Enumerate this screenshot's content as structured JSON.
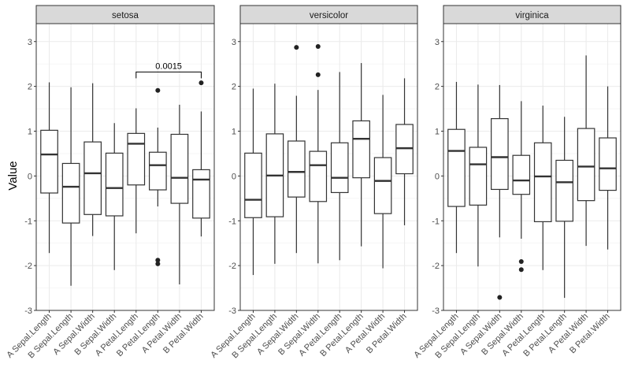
{
  "chart_data": {
    "type": "boxplot",
    "ylabel": "Value",
    "xlabel": "",
    "ylim": [
      -3,
      3.4
    ],
    "yticks": [
      -3,
      -2,
      -1,
      0,
      1,
      2,
      3
    ],
    "grid": true,
    "categories": [
      "A Sepal.Length",
      "B Sepal.Length",
      "A Sepal.Width",
      "B Sepal.Width",
      "A Petal.Length",
      "B Petal.Length",
      "A Petal.Width",
      "B Petal.Width"
    ],
    "panels": [
      {
        "title": "setosa",
        "boxes": [
          {
            "low": -1.72,
            "q1": -0.38,
            "median": 0.48,
            "q3": 1.02,
            "high": 2.09,
            "outliers": []
          },
          {
            "low": -2.45,
            "q1": -1.05,
            "median": -0.24,
            "q3": 0.28,
            "high": 1.98,
            "outliers": []
          },
          {
            "low": -1.34,
            "q1": -0.86,
            "median": 0.06,
            "q3": 0.76,
            "high": 2.07,
            "outliers": []
          },
          {
            "low": -2.1,
            "q1": -0.89,
            "median": -0.27,
            "q3": 0.51,
            "high": 1.18,
            "outliers": []
          },
          {
            "low": -1.28,
            "q1": -0.2,
            "median": 0.72,
            "q3": 0.95,
            "high": 1.51,
            "outliers": []
          },
          {
            "low": -0.68,
            "q1": -0.31,
            "median": 0.24,
            "q3": 0.53,
            "high": 1.08,
            "outliers": [
              1.91,
              -1.88,
              -1.96
            ]
          },
          {
            "low": -2.42,
            "q1": -0.61,
            "median": -0.04,
            "q3": 0.93,
            "high": 1.59,
            "outliers": []
          },
          {
            "low": -1.35,
            "q1": -0.94,
            "median": -0.08,
            "q3": 0.14,
            "high": 1.44,
            "outliers": [
              2.08
            ]
          }
        ],
        "annotations": [
          {
            "from": 5,
            "to": 8,
            "y": 2.32,
            "label": "0.0015"
          }
        ]
      },
      {
        "title": "versicolor",
        "boxes": [
          {
            "low": -2.21,
            "q1": -0.93,
            "median": -0.53,
            "q3": 0.51,
            "high": 1.95,
            "outliers": []
          },
          {
            "low": -1.96,
            "q1": -0.91,
            "median": 0.01,
            "q3": 0.94,
            "high": 2.06,
            "outliers": []
          },
          {
            "low": -1.72,
            "q1": -0.47,
            "median": 0.09,
            "q3": 0.78,
            "high": 1.79,
            "outliers": [
              2.87
            ]
          },
          {
            "low": -1.95,
            "q1": -0.57,
            "median": 0.24,
            "q3": 0.55,
            "high": 1.92,
            "outliers": [
              2.89,
              2.26
            ]
          },
          {
            "low": -1.88,
            "q1": -0.37,
            "median": -0.04,
            "q3": 0.74,
            "high": 2.32,
            "outliers": []
          },
          {
            "low": -1.57,
            "q1": -0.04,
            "median": 0.83,
            "q3": 1.23,
            "high": 2.52,
            "outliers": []
          },
          {
            "low": -2.06,
            "q1": -0.84,
            "median": -0.11,
            "q3": 0.41,
            "high": 1.81,
            "outliers": []
          },
          {
            "low": -1.1,
            "q1": 0.05,
            "median": 0.62,
            "q3": 1.15,
            "high": 2.18,
            "outliers": []
          }
        ],
        "annotations": []
      },
      {
        "title": "virginica",
        "boxes": [
          {
            "low": -1.72,
            "q1": -0.68,
            "median": 0.56,
            "q3": 1.04,
            "high": 2.1,
            "outliers": []
          },
          {
            "low": -2.02,
            "q1": -0.65,
            "median": 0.26,
            "q3": 0.64,
            "high": 2.04,
            "outliers": []
          },
          {
            "low": -1.37,
            "q1": -0.3,
            "median": 0.42,
            "q3": 1.28,
            "high": 2.03,
            "outliers": [
              -2.71
            ]
          },
          {
            "low": -1.4,
            "q1": -0.41,
            "median": -0.1,
            "q3": 0.46,
            "high": 1.67,
            "outliers": [
              -1.91,
              -2.09
            ]
          },
          {
            "low": -2.1,
            "q1": -1.02,
            "median": -0.01,
            "q3": 0.74,
            "high": 1.57,
            "outliers": []
          },
          {
            "low": -2.72,
            "q1": -1.01,
            "median": -0.14,
            "q3": 0.35,
            "high": 1.32,
            "outliers": []
          },
          {
            "low": -1.56,
            "q1": -0.55,
            "median": 0.21,
            "q3": 1.06,
            "high": 2.69,
            "outliers": []
          },
          {
            "low": -1.64,
            "q1": -0.32,
            "median": 0.17,
            "q3": 0.85,
            "high": 2.0,
            "outliers": []
          }
        ],
        "annotations": []
      }
    ]
  }
}
